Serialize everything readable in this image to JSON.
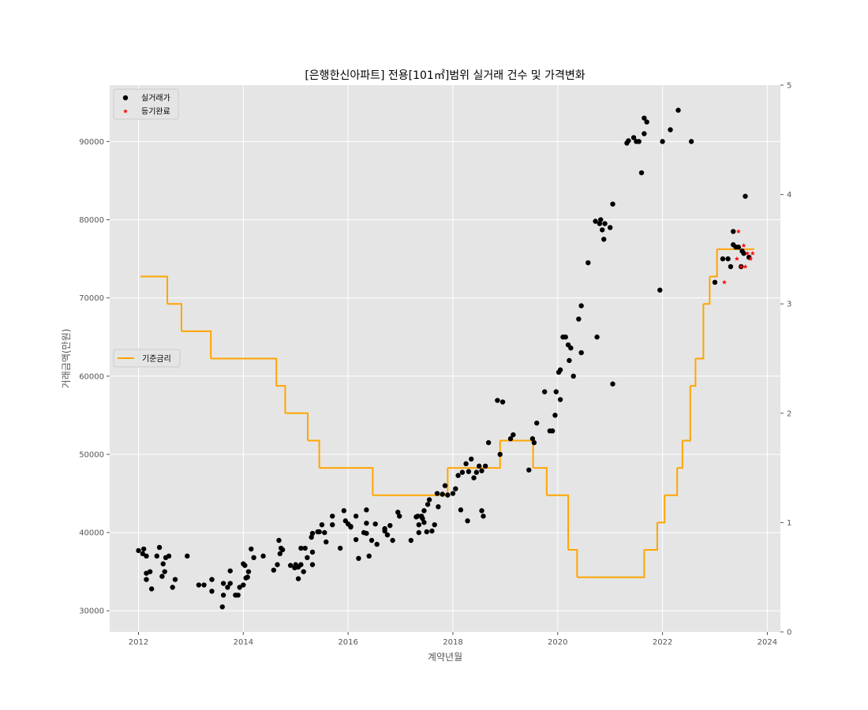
{
  "chart_data": {
    "type": "scatter",
    "title": "[은행한신아파트] 전용[101㎡]범위 실거래 건수 및 가격변화",
    "xlabel": "계약년월",
    "ylabel": "거래금액(만원)",
    "xlim": [
      2011.45,
      2024.25
    ],
    "ylim": [
      27300,
      97200
    ],
    "y2lim": [
      0,
      5
    ],
    "x_ticks": [
      2012,
      2014,
      2016,
      2018,
      2020,
      2022,
      2024
    ],
    "y_ticks": [
      30000,
      40000,
      50000,
      60000,
      70000,
      80000,
      90000
    ],
    "y2_ticks": [
      0,
      1,
      2,
      3,
      4,
      5
    ],
    "grid": true,
    "background": "#e5e5e5",
    "legend_upper": {
      "placement": "top-left",
      "entries": [
        {
          "label": "실거래가",
          "marker": "circle",
          "color": "#000000"
        },
        {
          "label": "등기완료",
          "marker": "star",
          "color": "#ff0000"
        }
      ]
    },
    "legend_lower": {
      "placement": "center-left",
      "entries": [
        {
          "label": "기준금리",
          "marker": "line",
          "color": "#ffa500"
        }
      ]
    },
    "series": [
      {
        "name": "실거래가",
        "kind": "scatter",
        "axis": "left",
        "color": "#000000",
        "points": [
          [
            2012.0,
            37700
          ],
          [
            2012.08,
            37300
          ],
          [
            2012.1,
            37900
          ],
          [
            2012.15,
            37000
          ],
          [
            2012.15,
            34000
          ],
          [
            2012.15,
            34800
          ],
          [
            2012.22,
            35000
          ],
          [
            2012.25,
            32800
          ],
          [
            2012.35,
            37000
          ],
          [
            2012.4,
            38100
          ],
          [
            2012.45,
            34400
          ],
          [
            2012.47,
            36000
          ],
          [
            2012.5,
            35000
          ],
          [
            2012.52,
            36800
          ],
          [
            2012.58,
            37000
          ],
          [
            2012.65,
            33000
          ],
          [
            2012.7,
            34000
          ],
          [
            2012.93,
            37000
          ],
          [
            2013.15,
            33300
          ],
          [
            2013.25,
            33300
          ],
          [
            2013.4,
            32500
          ],
          [
            2013.4,
            34000
          ],
          [
            2013.6,
            30500
          ],
          [
            2013.62,
            32000
          ],
          [
            2013.62,
            33500
          ],
          [
            2013.7,
            33000
          ],
          [
            2013.75,
            33500
          ],
          [
            2013.75,
            35100
          ],
          [
            2013.85,
            32000
          ],
          [
            2013.9,
            32000
          ],
          [
            2013.93,
            33000
          ],
          [
            2014.0,
            33300
          ],
          [
            2014.0,
            36000
          ],
          [
            2014.03,
            35800
          ],
          [
            2014.05,
            34200
          ],
          [
            2014.08,
            34300
          ],
          [
            2014.1,
            35000
          ],
          [
            2014.15,
            37900
          ],
          [
            2014.2,
            36800
          ],
          [
            2014.38,
            37000
          ],
          [
            2014.58,
            35200
          ],
          [
            2014.65,
            35900
          ],
          [
            2014.68,
            39000
          ],
          [
            2014.7,
            37300
          ],
          [
            2014.72,
            38000
          ],
          [
            2014.75,
            37800
          ],
          [
            2014.9,
            35800
          ],
          [
            2014.98,
            35500
          ],
          [
            2015.0,
            35900
          ],
          [
            2015.02,
            35600
          ],
          [
            2015.05,
            34100
          ],
          [
            2015.05,
            35600
          ],
          [
            2015.1,
            35900
          ],
          [
            2015.1,
            38000
          ],
          [
            2015.15,
            35000
          ],
          [
            2015.18,
            38000
          ],
          [
            2015.22,
            36800
          ],
          [
            2015.3,
            39400
          ],
          [
            2015.32,
            39900
          ],
          [
            2015.32,
            37500
          ],
          [
            2015.32,
            35900
          ],
          [
            2015.42,
            40100
          ],
          [
            2015.45,
            40100
          ],
          [
            2015.5,
            41000
          ],
          [
            2015.55,
            40000
          ],
          [
            2015.58,
            38800
          ],
          [
            2015.7,
            41000
          ],
          [
            2015.7,
            42100
          ],
          [
            2015.85,
            38000
          ],
          [
            2015.92,
            42800
          ],
          [
            2015.95,
            41500
          ],
          [
            2016.0,
            41100
          ],
          [
            2016.05,
            40800
          ],
          [
            2016.05,
            40700
          ],
          [
            2016.15,
            42100
          ],
          [
            2016.15,
            39100
          ],
          [
            2016.2,
            36700
          ],
          [
            2016.3,
            40000
          ],
          [
            2016.35,
            42900
          ],
          [
            2016.35,
            41200
          ],
          [
            2016.35,
            39900
          ],
          [
            2016.4,
            37000
          ],
          [
            2016.45,
            39000
          ],
          [
            2016.52,
            41100
          ],
          [
            2016.55,
            38500
          ],
          [
            2016.7,
            40500
          ],
          [
            2016.7,
            40200
          ],
          [
            2016.75,
            39700
          ],
          [
            2016.8,
            40900
          ],
          [
            2016.85,
            39000
          ],
          [
            2016.95,
            42600
          ],
          [
            2016.98,
            42100
          ],
          [
            2017.2,
            39000
          ],
          [
            2017.3,
            42000
          ],
          [
            2017.33,
            42100
          ],
          [
            2017.35,
            40000
          ],
          [
            2017.35,
            41000
          ],
          [
            2017.4,
            42100
          ],
          [
            2017.42,
            41800
          ],
          [
            2017.45,
            41300
          ],
          [
            2017.45,
            42800
          ],
          [
            2017.5,
            40100
          ],
          [
            2017.52,
            43600
          ],
          [
            2017.55,
            44200
          ],
          [
            2017.6,
            40200
          ],
          [
            2017.65,
            41000
          ],
          [
            2017.7,
            45000
          ],
          [
            2017.72,
            43300
          ],
          [
            2017.8,
            44900
          ],
          [
            2017.85,
            46000
          ],
          [
            2017.9,
            44800
          ],
          [
            2018.0,
            45000
          ],
          [
            2018.05,
            45600
          ],
          [
            2018.1,
            47300
          ],
          [
            2018.15,
            42900
          ],
          [
            2018.18,
            47700
          ],
          [
            2018.25,
            48800
          ],
          [
            2018.28,
            41500
          ],
          [
            2018.3,
            47800
          ],
          [
            2018.35,
            49400
          ],
          [
            2018.4,
            47000
          ],
          [
            2018.45,
            47700
          ],
          [
            2018.5,
            48500
          ],
          [
            2018.55,
            47900
          ],
          [
            2018.55,
            42800
          ],
          [
            2018.58,
            42100
          ],
          [
            2018.62,
            48500
          ],
          [
            2018.68,
            51500
          ],
          [
            2018.85,
            56900
          ],
          [
            2018.9,
            50000
          ],
          [
            2018.95,
            56700
          ],
          [
            2019.1,
            52000
          ],
          [
            2019.15,
            52500
          ],
          [
            2019.45,
            48000
          ],
          [
            2019.52,
            52000
          ],
          [
            2019.55,
            51500
          ],
          [
            2019.6,
            54000
          ],
          [
            2019.75,
            58000
          ],
          [
            2019.85,
            53000
          ],
          [
            2019.9,
            53000
          ],
          [
            2019.95,
            55000
          ],
          [
            2019.97,
            58000
          ],
          [
            2020.02,
            60500
          ],
          [
            2020.05,
            57000
          ],
          [
            2020.05,
            60800
          ],
          [
            2020.1,
            65000
          ],
          [
            2020.15,
            65000
          ],
          [
            2020.2,
            64000
          ],
          [
            2020.22,
            62000
          ],
          [
            2020.25,
            63600
          ],
          [
            2020.3,
            60000
          ],
          [
            2020.4,
            67300
          ],
          [
            2020.45,
            69000
          ],
          [
            2020.45,
            63000
          ],
          [
            2020.58,
            74500
          ],
          [
            2020.72,
            79800
          ],
          [
            2020.75,
            65000
          ],
          [
            2020.8,
            79500
          ],
          [
            2020.82,
            80000
          ],
          [
            2020.85,
            78700
          ],
          [
            2020.88,
            77500
          ],
          [
            2020.9,
            79500
          ],
          [
            2021.0,
            79000
          ],
          [
            2021.05,
            82000
          ],
          [
            2021.05,
            59000
          ],
          [
            2021.32,
            89800
          ],
          [
            2021.35,
            90100
          ],
          [
            2021.45,
            90500
          ],
          [
            2021.5,
            90000
          ],
          [
            2021.55,
            90000
          ],
          [
            2021.6,
            86000
          ],
          [
            2021.65,
            91000
          ],
          [
            2021.65,
            93000
          ],
          [
            2021.7,
            92500
          ],
          [
            2021.95,
            71000
          ],
          [
            2022.0,
            90000
          ],
          [
            2022.15,
            91500
          ],
          [
            2022.3,
            94000
          ],
          [
            2022.55,
            90000
          ],
          [
            2023.0,
            72000
          ],
          [
            2023.15,
            75000
          ],
          [
            2023.25,
            75000
          ],
          [
            2023.3,
            74000
          ],
          [
            2023.35,
            78500
          ],
          [
            2023.35,
            76800
          ],
          [
            2023.4,
            76500
          ],
          [
            2023.45,
            76500
          ],
          [
            2023.5,
            74000
          ],
          [
            2023.52,
            76000
          ],
          [
            2023.55,
            75700
          ],
          [
            2023.58,
            83000
          ],
          [
            2023.65,
            75200
          ]
        ]
      },
      {
        "name": "등기완료",
        "kind": "scatter",
        "axis": "left",
        "color": "#ff0000",
        "points": [
          [
            2023.18,
            72000
          ],
          [
            2023.42,
            75000
          ],
          [
            2023.45,
            78500
          ],
          [
            2023.5,
            74000
          ],
          [
            2023.55,
            76700
          ],
          [
            2023.58,
            74000
          ],
          [
            2023.62,
            75700
          ],
          [
            2023.68,
            75000
          ],
          [
            2023.72,
            75700
          ]
        ]
      },
      {
        "name": "기준금리",
        "kind": "step",
        "axis": "right",
        "color": "#ffa500",
        "points": [
          [
            2012.04,
            3.25
          ],
          [
            2012.55,
            3.0
          ],
          [
            2012.82,
            2.75
          ],
          [
            2013.38,
            2.5
          ],
          [
            2014.63,
            2.25
          ],
          [
            2014.8,
            2.0
          ],
          [
            2015.23,
            1.75
          ],
          [
            2015.45,
            1.5
          ],
          [
            2016.47,
            1.25
          ],
          [
            2017.9,
            1.5
          ],
          [
            2018.9,
            1.75
          ],
          [
            2019.53,
            1.5
          ],
          [
            2019.79,
            1.25
          ],
          [
            2020.2,
            0.75
          ],
          [
            2020.37,
            0.5
          ],
          [
            2021.65,
            0.75
          ],
          [
            2021.9,
            1.0
          ],
          [
            2022.04,
            1.25
          ],
          [
            2022.28,
            1.5
          ],
          [
            2022.38,
            1.75
          ],
          [
            2022.53,
            2.25
          ],
          [
            2022.63,
            2.5
          ],
          [
            2022.78,
            3.0
          ],
          [
            2022.9,
            3.25
          ],
          [
            2023.04,
            3.5
          ],
          [
            2023.75,
            3.5
          ]
        ]
      }
    ]
  }
}
